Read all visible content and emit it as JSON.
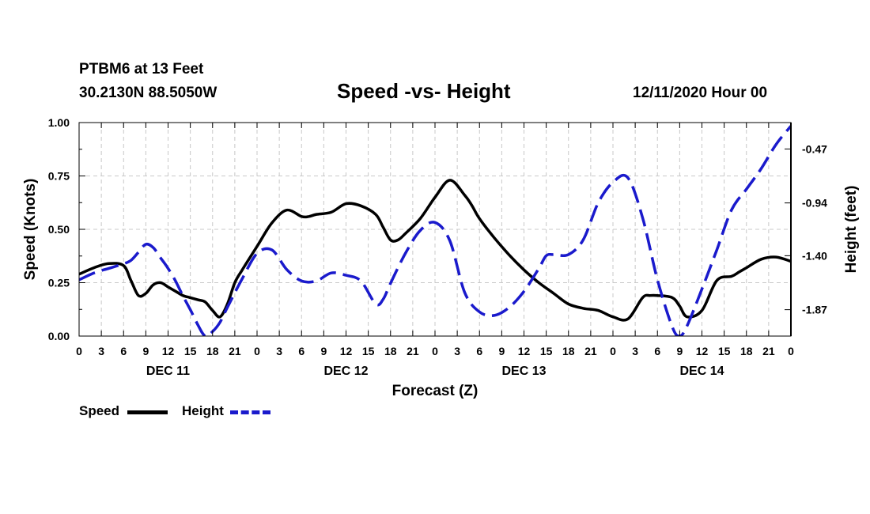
{
  "header": {
    "station": "PTBM6 at 13 Feet",
    "coords": "30.2130N 88.5050W",
    "title": "Speed -vs- Height",
    "date": "12/11/2020 Hour 00"
  },
  "legend": {
    "speed_label": "Speed",
    "height_label": "Height"
  },
  "colors": {
    "speed": "#000000",
    "height": "#1a1acc",
    "grid": "#c8c8c8"
  },
  "chart_data": {
    "type": "line",
    "title": "Speed -vs- Height",
    "xlabel": "Forecast (Z)",
    "ylabel": "Speed (Knots)",
    "y2label": "Height (feet)",
    "x_unit": "forecast hour",
    "xlim": [
      0,
      96
    ],
    "ylim": [
      0,
      1
    ],
    "y2lim": [
      -2.1,
      -0.24
    ],
    "grid": true,
    "legend_position": "bottom-left",
    "x_tick_labels": [
      "0",
      "3",
      "6",
      "9",
      "12",
      "15",
      "18",
      "21",
      "0",
      "3",
      "6",
      "9",
      "12",
      "15",
      "18",
      "21",
      "0",
      "3",
      "6",
      "9",
      "12",
      "15",
      "18",
      "21",
      "0",
      "3",
      "6",
      "9",
      "12",
      "15",
      "18",
      "21",
      "0"
    ],
    "day_labels": [
      "DEC 11",
      "DEC 12",
      "DEC 13",
      "DEC 14"
    ],
    "y_ticks": [
      "0.00",
      "0.25",
      "0.50",
      "0.75",
      "1.00"
    ],
    "y2_ticks": [
      "-0.47",
      "-0.94",
      "-1.40",
      "-1.87"
    ],
    "series": [
      {
        "name": "Speed",
        "axis": "left",
        "style": "solid",
        "x": [
          0,
          2,
          4,
          6,
          7,
          8,
          9,
          10,
          11,
          12,
          13,
          14,
          15,
          16,
          17,
          18,
          19,
          20,
          21,
          22,
          24,
          26,
          28,
          30,
          31,
          32,
          34,
          36,
          38,
          40,
          41,
          42,
          43,
          44,
          46,
          48,
          50,
          52,
          53,
          54,
          56,
          58,
          60,
          62,
          64,
          66,
          68,
          70,
          72,
          74,
          76,
          77,
          78,
          80,
          81,
          82,
          84,
          86,
          88,
          89,
          90,
          92,
          94,
          96
        ],
        "y": [
          0.29,
          0.32,
          0.34,
          0.33,
          0.26,
          0.19,
          0.2,
          0.24,
          0.25,
          0.23,
          0.21,
          0.19,
          0.18,
          0.17,
          0.16,
          0.12,
          0.09,
          0.15,
          0.25,
          0.31,
          0.42,
          0.53,
          0.59,
          0.56,
          0.56,
          0.57,
          0.58,
          0.62,
          0.61,
          0.57,
          0.51,
          0.45,
          0.45,
          0.48,
          0.55,
          0.65,
          0.73,
          0.66,
          0.61,
          0.55,
          0.46,
          0.38,
          0.31,
          0.25,
          0.2,
          0.15,
          0.13,
          0.12,
          0.09,
          0.08,
          0.18,
          0.19,
          0.19,
          0.18,
          0.14,
          0.09,
          0.12,
          0.26,
          0.28,
          0.3,
          0.32,
          0.36,
          0.37,
          0.35
        ]
      },
      {
        "name": "Height",
        "axis": "right",
        "style": "dashed",
        "x": [
          0,
          2,
          4,
          6,
          7,
          8,
          9,
          10,
          11,
          12,
          13,
          14,
          15,
          16,
          17,
          18,
          19,
          20,
          22,
          24,
          26,
          28,
          30,
          32,
          34,
          36,
          38,
          40,
          41,
          42,
          44,
          46,
          48,
          50,
          52,
          54,
          56,
          58,
          60,
          62,
          63,
          64,
          66,
          68,
          70,
          72,
          74,
          76,
          78,
          80,
          81,
          82,
          84,
          86,
          88,
          90,
          92,
          94,
          96
        ],
        "y": [
          -1.61,
          -1.55,
          -1.51,
          -1.47,
          -1.44,
          -1.37,
          -1.3,
          -1.33,
          -1.42,
          -1.51,
          -1.62,
          -1.75,
          -1.87,
          -2.0,
          -2.1,
          -2.06,
          -1.98,
          -1.85,
          -1.6,
          -1.38,
          -1.35,
          -1.52,
          -1.62,
          -1.62,
          -1.55,
          -1.57,
          -1.62,
          -1.82,
          -1.78,
          -1.64,
          -1.38,
          -1.18,
          -1.11,
          -1.27,
          -1.72,
          -1.89,
          -1.92,
          -1.85,
          -1.71,
          -1.51,
          -1.4,
          -1.39,
          -1.39,
          -1.26,
          -0.94,
          -0.76,
          -0.72,
          -1.07,
          -1.61,
          -2.02,
          -2.1,
          -2.01,
          -1.69,
          -1.35,
          -1.0,
          -0.82,
          -0.64,
          -0.43,
          -0.27
        ]
      }
    ]
  }
}
